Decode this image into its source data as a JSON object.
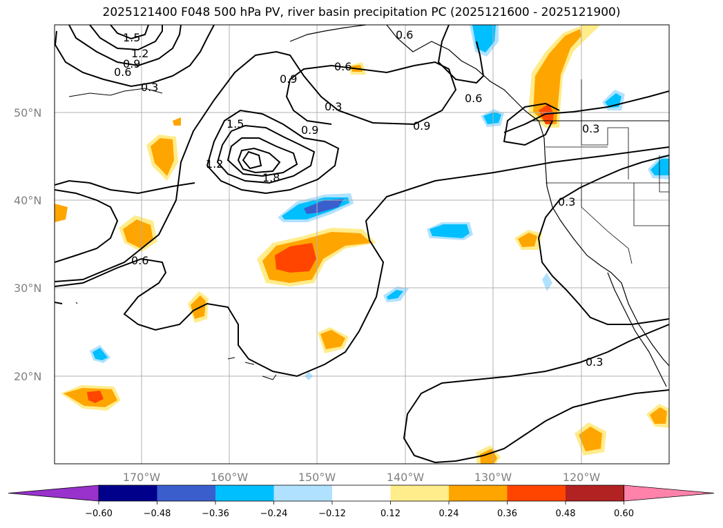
{
  "title": "2025121400 F048 500 hPa PV, river basin precipitation PC (2025121600 - 2025121900)",
  "map": {
    "lat_labels": [
      "50°N",
      "40°N",
      "30°N",
      "20°N"
    ],
    "lon_labels": [
      "170°W",
      "160°W",
      "150°W",
      "140°W",
      "130°W",
      "120°W"
    ],
    "contour_labels": [
      "1.5",
      "1.2",
      "0.9",
      "0.6",
      "0.3",
      "0.6",
      "0.9",
      "0.6",
      "0.3",
      "0.9",
      "0.9",
      "1.5",
      "1.2",
      "1.8",
      "0.6",
      "0.3",
      "0.3",
      "0.6",
      "0.3"
    ],
    "grid": true
  },
  "colorbar": {
    "ticks": [
      "−0.60",
      "−0.48",
      "−0.36",
      "−0.24",
      "−0.12",
      "0.12",
      "0.24",
      "0.36",
      "0.48",
      "0.60"
    ],
    "colors": [
      "#9932cc",
      "#00008b",
      "#3a5fcd",
      "#00bfff",
      "#b0e2ff",
      "#ffffff",
      "#ffec8b",
      "#ffa500",
      "#ff4500",
      "#b22222",
      "#ff82ab"
    ]
  }
}
